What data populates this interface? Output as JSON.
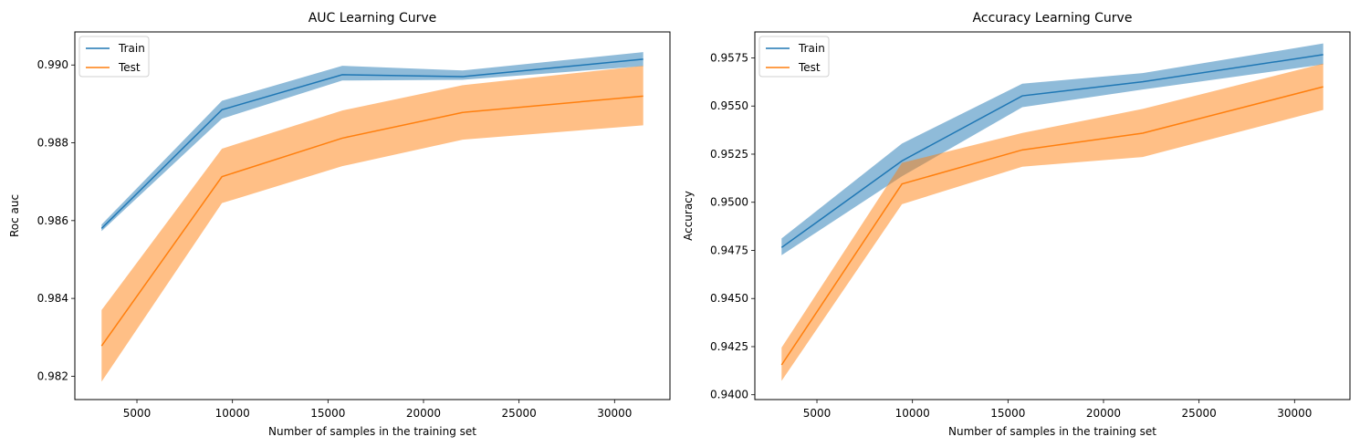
{
  "chart_data": [
    {
      "type": "line",
      "title": "AUC Learning Curve",
      "xlabel": "Number of samples in the training set",
      "ylabel": "Roc auc",
      "xlim": [
        1750,
        32900
      ],
      "ylim": [
        0.9814,
        0.99085
      ],
      "xticks": [
        5000,
        10000,
        15000,
        20000,
        25000,
        30000
      ],
      "xtick_labels": [
        "5000",
        "10000",
        "15000",
        "20000",
        "25000",
        "30000"
      ],
      "yticks": [
        0.982,
        0.984,
        0.986,
        0.988,
        0.99
      ],
      "ytick_labels": [
        "0.982",
        "0.984",
        "0.986",
        "0.988",
        "0.990"
      ],
      "legend": "top-left",
      "grid": false,
      "x": [
        3150,
        9450,
        15750,
        22050,
        31500
      ],
      "series": [
        {
          "name": "Train",
          "color": "#1f77b4",
          "band_opacity": 0.5,
          "values": [
            0.9858,
            0.98885,
            0.98975,
            0.9897,
            0.99015
          ],
          "lower": [
            0.98573,
            0.98862,
            0.9896,
            0.98962,
            0.98997
          ],
          "upper": [
            0.9859,
            0.98908,
            0.98998,
            0.98986,
            0.99033
          ]
        },
        {
          "name": "Test",
          "color": "#ff7f0e",
          "band_opacity": 0.5,
          "values": [
            0.98278,
            0.98713,
            0.98812,
            0.98878,
            0.9892
          ],
          "lower": [
            0.98186,
            0.98645,
            0.9874,
            0.98808,
            0.98845
          ],
          "upper": [
            0.9837,
            0.98785,
            0.98883,
            0.98948,
            0.98998
          ]
        }
      ]
    },
    {
      "type": "line",
      "title": "Accuracy Learning Curve",
      "xlabel": "Number of samples in the training set",
      "ylabel": "Accuracy",
      "xlim": [
        1750,
        32900
      ],
      "ylim": [
        0.93975,
        0.95885
      ],
      "xticks": [
        5000,
        10000,
        15000,
        20000,
        25000,
        30000
      ],
      "xtick_labels": [
        "5000",
        "10000",
        "15000",
        "20000",
        "25000",
        "30000"
      ],
      "yticks": [
        0.94,
        0.9425,
        0.945,
        0.9475,
        0.95,
        0.9525,
        0.955,
        0.9575
      ],
      "ytick_labels": [
        "0.9400",
        "0.9425",
        "0.9450",
        "0.9475",
        "0.9500",
        "0.9525",
        "0.9550",
        "0.9575"
      ],
      "legend": "top-left",
      "grid": false,
      "x": [
        3150,
        9450,
        15750,
        22050,
        31500
      ],
      "series": [
        {
          "name": "Train",
          "color": "#1f77b4",
          "band_opacity": 0.5,
          "values": [
            0.94765,
            0.95215,
            0.95553,
            0.95626,
            0.95767
          ],
          "lower": [
            0.94725,
            0.95135,
            0.95494,
            0.95586,
            0.95716
          ],
          "upper": [
            0.94812,
            0.95305,
            0.95616,
            0.95671,
            0.95825
          ]
        },
        {
          "name": "Test",
          "color": "#ff7f0e",
          "band_opacity": 0.5,
          "values": [
            0.94155,
            0.95095,
            0.95272,
            0.95359,
            0.956
          ],
          "lower": [
            0.94072,
            0.9499,
            0.95185,
            0.95235,
            0.9548
          ],
          "upper": [
            0.94245,
            0.95205,
            0.9536,
            0.95485,
            0.9572
          ]
        }
      ]
    }
  ]
}
